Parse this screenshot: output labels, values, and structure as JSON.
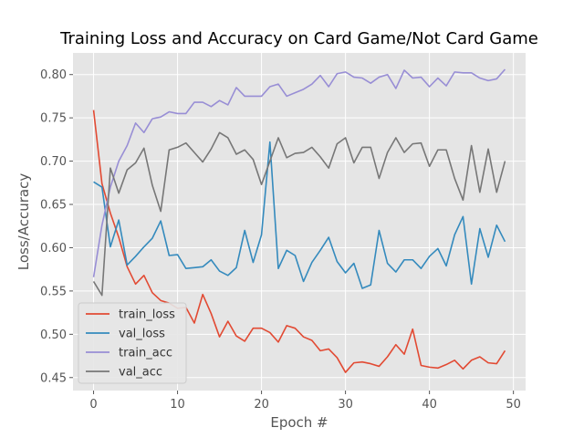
{
  "chart_data": {
    "type": "line",
    "title": "Training Loss and Accuracy on Card Game/Not Card Game",
    "xlabel": "Epoch #",
    "ylabel": "Loss/Accuracy",
    "xlim": [
      -2.45,
      51.45
    ],
    "ylim": [
      0.435,
      0.825
    ],
    "xticks": [
      0,
      10,
      20,
      30,
      40,
      50
    ],
    "yticks": [
      0.45,
      0.5,
      0.55,
      0.6,
      0.65,
      0.7,
      0.75,
      0.8
    ],
    "ytick_labels": [
      "0.45",
      "0.50",
      "0.55",
      "0.60",
      "0.65",
      "0.70",
      "0.75",
      "0.80"
    ],
    "grid": true,
    "legend_position": "lower-left",
    "x": [
      0,
      1,
      2,
      3,
      4,
      5,
      6,
      7,
      8,
      9,
      10,
      11,
      12,
      13,
      14,
      15,
      16,
      17,
      18,
      19,
      20,
      21,
      22,
      23,
      24,
      25,
      26,
      27,
      28,
      29,
      30,
      31,
      32,
      33,
      34,
      35,
      36,
      37,
      38,
      39,
      40,
      41,
      42,
      43,
      44,
      45,
      46,
      47,
      48,
      49
    ],
    "series": [
      {
        "name": "train_loss",
        "color": "#E24A33",
        "values": [
          0.759,
          0.674,
          0.64,
          0.612,
          0.578,
          0.558,
          0.568,
          0.548,
          0.539,
          0.536,
          0.53,
          0.531,
          0.513,
          0.546,
          0.524,
          0.497,
          0.515,
          0.498,
          0.492,
          0.507,
          0.507,
          0.502,
          0.491,
          0.51,
          0.507,
          0.497,
          0.493,
          0.481,
          0.483,
          0.473,
          0.456,
          0.467,
          0.468,
          0.466,
          0.463,
          0.474,
          0.488,
          0.477,
          0.506,
          0.464,
          0.462,
          0.461,
          0.465,
          0.47,
          0.46,
          0.47,
          0.474,
          0.467,
          0.466,
          0.481
        ]
      },
      {
        "name": "val_loss",
        "color": "#348ABD",
        "values": [
          0.676,
          0.67,
          0.601,
          0.632,
          0.58,
          0.59,
          0.601,
          0.611,
          0.631,
          0.591,
          0.592,
          0.576,
          0.577,
          0.578,
          0.586,
          0.573,
          0.568,
          0.577,
          0.62,
          0.583,
          0.615,
          0.722,
          0.576,
          0.597,
          0.591,
          0.561,
          0.583,
          0.597,
          0.612,
          0.584,
          0.571,
          0.582,
          0.553,
          0.557,
          0.62,
          0.582,
          0.572,
          0.586,
          0.586,
          0.576,
          0.59,
          0.599,
          0.579,
          0.615,
          0.636,
          0.558,
          0.622,
          0.589,
          0.626,
          0.607
        ]
      },
      {
        "name": "train_acc",
        "color": "#988ED5",
        "values": [
          0.566,
          0.626,
          0.67,
          0.7,
          0.718,
          0.744,
          0.733,
          0.749,
          0.751,
          0.757,
          0.755,
          0.755,
          0.768,
          0.768,
          0.763,
          0.77,
          0.765,
          0.785,
          0.775,
          0.775,
          0.775,
          0.786,
          0.789,
          0.775,
          0.779,
          0.783,
          0.789,
          0.799,
          0.786,
          0.801,
          0.803,
          0.797,
          0.796,
          0.79,
          0.797,
          0.8,
          0.784,
          0.805,
          0.796,
          0.797,
          0.786,
          0.796,
          0.787,
          0.803,
          0.802,
          0.802,
          0.796,
          0.793,
          0.795,
          0.806
        ]
      },
      {
        "name": "val_acc",
        "color": "#777777",
        "values": [
          0.561,
          0.545,
          0.692,
          0.663,
          0.69,
          0.698,
          0.715,
          0.672,
          0.642,
          0.713,
          0.716,
          0.721,
          0.71,
          0.699,
          0.714,
          0.733,
          0.727,
          0.708,
          0.713,
          0.702,
          0.673,
          0.7,
          0.727,
          0.704,
          0.709,
          0.71,
          0.716,
          0.705,
          0.692,
          0.72,
          0.727,
          0.698,
          0.716,
          0.716,
          0.68,
          0.71,
          0.727,
          0.71,
          0.72,
          0.721,
          0.694,
          0.713,
          0.713,
          0.68,
          0.655,
          0.718,
          0.664,
          0.714,
          0.664,
          0.7
        ]
      }
    ]
  },
  "colors": {
    "plot_background": "#E5E5E5",
    "grid": "#FFFFFF",
    "legend_background": "#E5E5E5"
  }
}
